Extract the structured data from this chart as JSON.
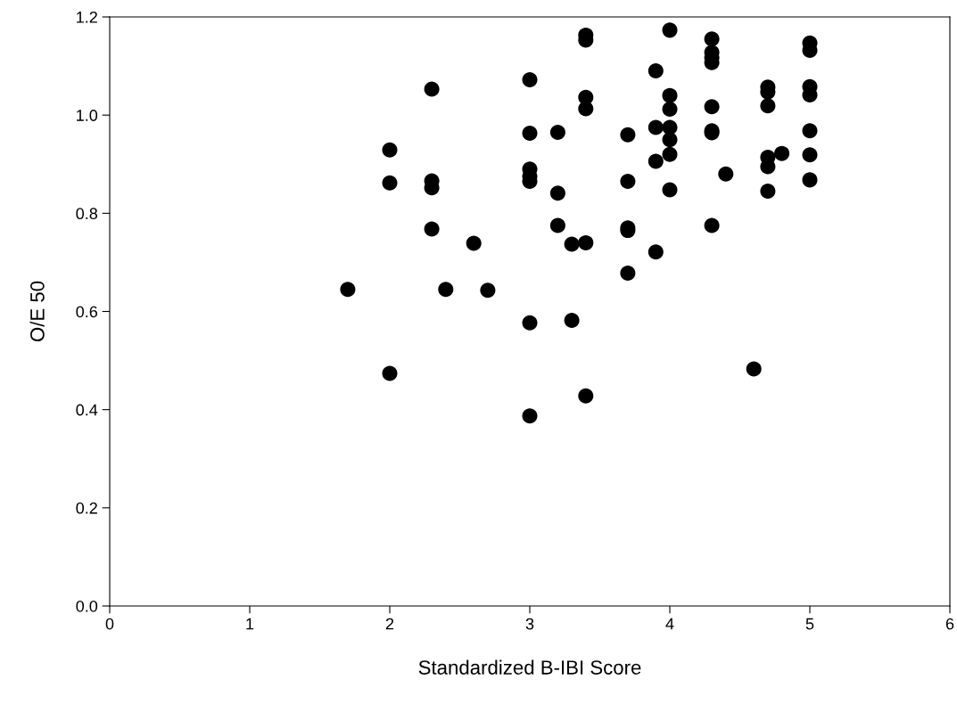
{
  "chart_data": {
    "type": "scatter",
    "xlabel": "Standardized B-IBI Score",
    "ylabel": "O/E 50",
    "x": [
      1.7,
      2.0,
      2.0,
      2.0,
      2.3,
      2.3,
      2.3,
      2.3,
      2.4,
      2.6,
      2.7,
      3.0,
      3.0,
      3.0,
      3.0,
      3.0,
      3.0,
      3.0,
      3.2,
      3.2,
      3.2,
      3.3,
      3.3,
      3.4,
      3.4,
      3.4,
      3.4,
      3.4,
      3.4,
      3.7,
      3.7,
      3.7,
      3.7,
      3.7,
      3.9,
      3.9,
      3.9,
      3.9,
      4.0,
      4.0,
      4.0,
      4.0,
      4.0,
      4.0,
      4.0,
      4.3,
      4.3,
      4.3,
      4.3,
      4.3,
      4.3,
      4.3,
      4.3,
      4.4,
      4.6,
      4.7,
      4.7,
      4.7,
      4.7,
      4.7,
      4.7,
      4.8,
      5.0,
      5.0,
      5.0,
      5.0,
      5.0,
      5.0,
      5.0
    ],
    "series": [
      {
        "color": "#000000",
        "values": [
          0.645,
          0.929,
          0.862,
          0.474,
          1.053,
          0.866,
          0.852,
          0.768,
          0.645,
          0.739,
          0.643,
          1.072,
          0.963,
          0.89,
          0.875,
          0.865,
          0.577,
          0.387,
          0.965,
          0.841,
          0.775,
          0.737,
          0.582,
          1.163,
          1.153,
          1.036,
          1.013,
          0.74,
          0.428,
          0.96,
          0.865,
          0.77,
          0.765,
          0.678,
          1.09,
          0.975,
          0.906,
          0.721,
          1.173,
          1.04,
          1.012,
          0.975,
          0.95,
          0.92,
          0.848,
          1.155,
          1.128,
          1.117,
          1.107,
          1.017,
          0.968,
          0.964,
          0.775,
          0.88,
          0.483,
          1.057,
          1.047,
          1.019,
          0.914,
          0.895,
          0.845,
          0.922,
          1.147,
          1.132,
          1.058,
          1.041,
          0.968,
          0.919,
          0.868
        ]
      }
    ],
    "xlim": [
      0,
      6
    ],
    "xticks": [
      0,
      1,
      2,
      3,
      4,
      5,
      6
    ],
    "ylim": [
      0,
      1.2
    ],
    "yticks": [
      {
        "value": 0,
        "label": "0.0"
      },
      0.2,
      0.4,
      0.6,
      0.8,
      {
        "value": 1,
        "label": "1.0"
      },
      1.2
    ],
    "grid": false,
    "legend": false,
    "marker": "circle"
  }
}
